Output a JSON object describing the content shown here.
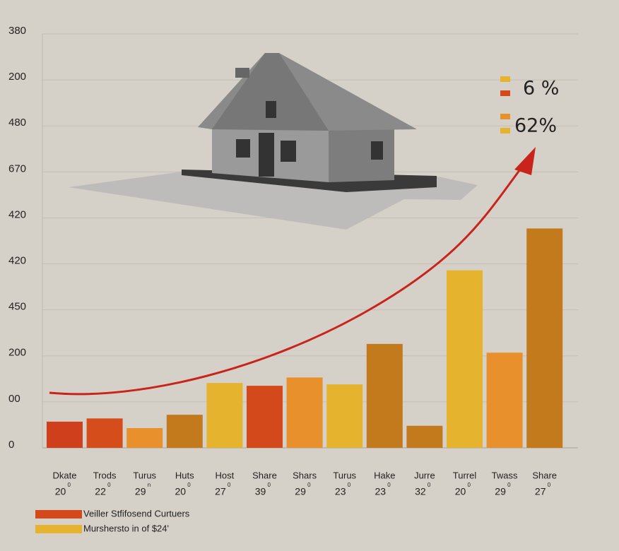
{
  "chart_data": {
    "type": "bar",
    "categories": [
      "Dkate",
      "Trods",
      "Turus",
      "Huts",
      "Host",
      "Share",
      "Shars",
      "Turus",
      "Hake",
      "Jurre",
      "Turrel",
      "Twass",
      "Share"
    ],
    "sublabels": [
      "20",
      "22",
      "29",
      "20",
      "27",
      "39",
      "29",
      "23",
      "23",
      "32",
      "20",
      "29",
      "27"
    ],
    "sublabel_marks": [
      "0",
      "0",
      "n",
      "0",
      "0",
      "0",
      "0",
      "0",
      "0",
      "0",
      "0",
      "0",
      "0"
    ],
    "values": [
      0.57,
      0.64,
      0.43,
      0.72,
      1.41,
      1.35,
      1.53,
      1.38,
      2.26,
      0.48,
      3.86,
      2.07,
      4.77
    ],
    "colors": [
      "#cf3f1c",
      "#d64d1c",
      "#e8902b",
      "#c27a1d",
      "#e5b32e",
      "#d4491c",
      "#e8902b",
      "#e5b32e",
      "#c27a1d",
      "#c27a1d",
      "#e5b32e",
      "#e8902b",
      "#c27a1d"
    ],
    "ylim": [
      0,
      9
    ],
    "yticks": [
      {
        "value": 0,
        "label": "0"
      },
      {
        "value": 1,
        "label": "00"
      },
      {
        "value": 2,
        "label": "200"
      },
      {
        "value": 3,
        "label": "450"
      },
      {
        "value": 4,
        "label": "420"
      },
      {
        "value": 5,
        "label": "420"
      },
      {
        "value": 6,
        "label": "670"
      },
      {
        "value": 7,
        "label": "480"
      },
      {
        "value": 8,
        "label": "200"
      },
      {
        "value": 9,
        "label": "380"
      }
    ],
    "grid": true,
    "annotations": [
      {
        "text": "6 %",
        "colors": [
          "#e5b32e",
          "#d4491c"
        ]
      },
      {
        "text": "62%",
        "colors": [
          "#e8902b",
          "#e5b32e"
        ]
      }
    ],
    "legend": [
      {
        "name": "Veiller Stfifosend Curtuers",
        "color": "#d4491c"
      },
      {
        "name": "Murshersto in of $24'",
        "color": "#e5b32e"
      }
    ]
  }
}
